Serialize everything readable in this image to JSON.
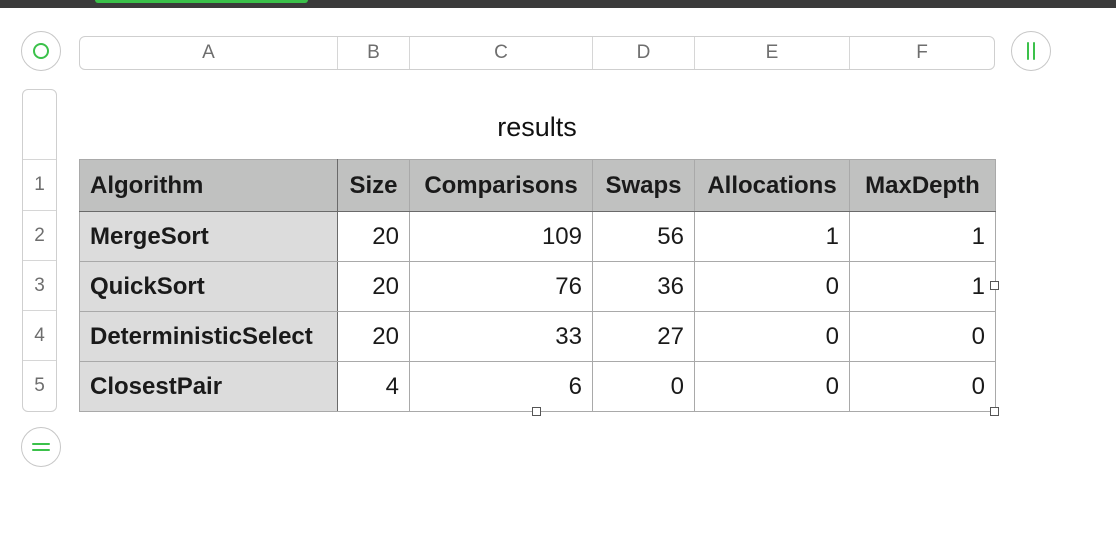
{
  "columns": [
    "A",
    "B",
    "C",
    "D",
    "E",
    "F"
  ],
  "rows": [
    "1",
    "2",
    "3",
    "4",
    "5"
  ],
  "table": {
    "title": "results",
    "headers": [
      "Algorithm",
      "Size",
      "Comparisons",
      "Swaps",
      "Allocations",
      "MaxDepth"
    ],
    "data": [
      [
        "MergeSort",
        "20",
        "109",
        "56",
        "1",
        "1"
      ],
      [
        "QuickSort",
        "20",
        "76",
        "36",
        "0",
        "1"
      ],
      [
        "DeterministicSelect",
        "20",
        "33",
        "27",
        "0",
        "0"
      ],
      [
        "ClosestPair",
        "4",
        "6",
        "0",
        "0",
        "0"
      ]
    ]
  },
  "icons": {
    "corner": "select-all-icon",
    "add_column": "add-column-icon",
    "add_row": "add-row-icon"
  },
  "colors": {
    "accent": "#3bc14a",
    "header_fill": "#c0c1c0",
    "name_column_fill": "#dcdcdc"
  }
}
